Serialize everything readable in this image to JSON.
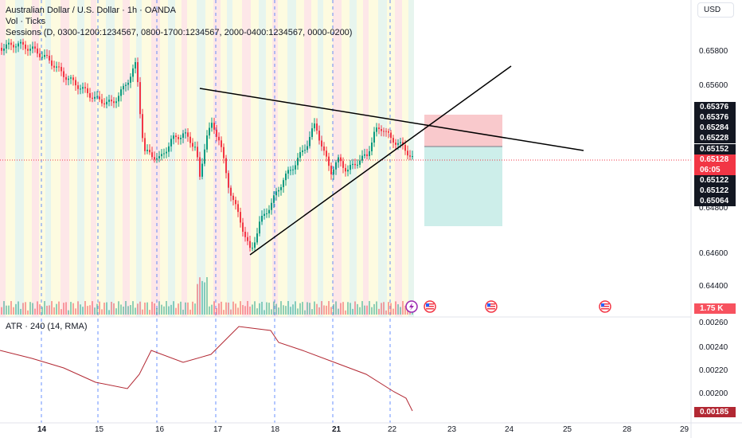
{
  "header": {
    "symbol_title": "Australian Dollar / U.S. Dollar · 1h · OANDA",
    "vol_label": "Vol · Ticks",
    "sessions_label": "Sessions (D, 0300-1200:1234567, 0800-1700:1234567, 2000-0400:1234567, 0000-0200)"
  },
  "currency_button": "USD",
  "price_axis": {
    "ticks": [
      "0.65800",
      "0.65600",
      "0.64800",
      "0.64600",
      "0.64400"
    ],
    "tags": [
      {
        "label": "0.65376",
        "bg": "#131722",
        "fg": "#ffffff"
      },
      {
        "label": "0.65376",
        "bg": "#131722",
        "fg": "#ffffff"
      },
      {
        "label": "0.65284",
        "bg": "#131722",
        "fg": "#ffffff"
      },
      {
        "label": "0.65228",
        "bg": "#131722",
        "fg": "#ffffff"
      },
      {
        "label": "0.65152",
        "bg": "#131722",
        "fg": "#ffffff"
      },
      {
        "label": "0.65128",
        "bg": "#f23645",
        "fg": "#ffffff"
      },
      {
        "label": "06:05",
        "bg": "#f23645",
        "fg": "#ffffff"
      },
      {
        "label": "0.65122",
        "bg": "#131722",
        "fg": "#ffffff"
      },
      {
        "label": "0.65122",
        "bg": "#131722",
        "fg": "#ffffff"
      },
      {
        "label": "0.65064",
        "bg": "#131722",
        "fg": "#ffffff"
      }
    ],
    "volume_tag": {
      "label": "1.75 K",
      "bg": "#f7525f"
    }
  },
  "atr": {
    "legend": "ATR · 240 (14, RMA)",
    "ticks": [
      "0.00260",
      "0.00240",
      "0.00220",
      "0.00200"
    ],
    "current_tag": {
      "label": "0.00185",
      "bg": "#b22833"
    }
  },
  "time_axis": {
    "labels": [
      "14",
      "15",
      "16",
      "17",
      "18",
      "21",
      "22",
      "23",
      "24",
      "25",
      "28",
      "29"
    ]
  },
  "colors": {
    "up": "#089981",
    "down": "#f23645",
    "atr_line": "#b22833",
    "trendline": "#000000",
    "stop_zone": "#f9c9cc",
    "target_zone": "#cdeeea",
    "session_red": "#fde7e8",
    "session_yellow": "#fdfbe0",
    "session_green": "#e7f5ee"
  },
  "icons": [
    "lightning-event-icon",
    "us-flag-event-icon",
    "us-flag-event-icon",
    "us-flag-event-icon"
  ],
  "chart_data": {
    "type": "candlestick",
    "title": "Australian Dollar / U.S. Dollar · 1h · OANDA",
    "ylim": [
      0.6428,
      0.6596
    ],
    "price_ticks": [
      0.658,
      0.656,
      0.648,
      0.646,
      0.644
    ],
    "trendlines": [
      {
        "from": [
          "16 ~13:00",
          0.6555
        ],
        "to": [
          "24 ~12:00",
          0.6516
        ]
      },
      {
        "from": [
          "17 ~10:00",
          0.6456
        ],
        "to": [
          "23 ~18:00",
          0.657
        ]
      }
    ],
    "position": {
      "entry": 0.65152,
      "stop": 0.65376,
      "target": 0.6474
    },
    "last_price": 0.65128,
    "atr": {
      "ylim": [
        0.0018,
        0.0027
      ],
      "ticks": [
        0.0026,
        0.0024,
        0.0022,
        0.002
      ],
      "last": 0.00185
    }
  }
}
